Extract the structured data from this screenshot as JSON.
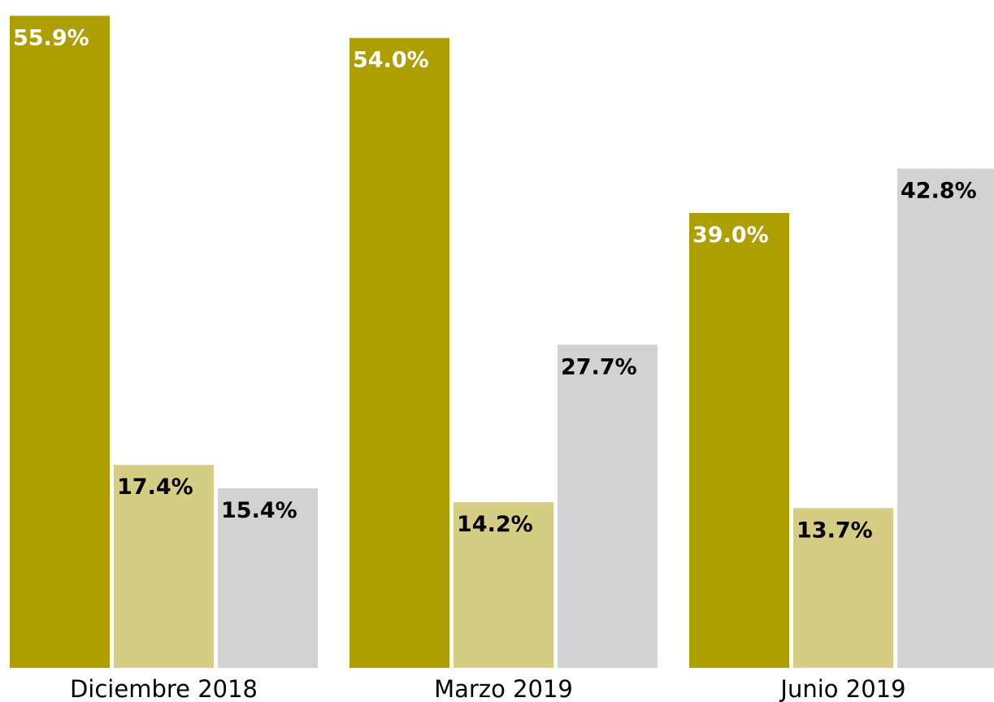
{
  "chart_data": {
    "type": "bar",
    "categories": [
      "Diciembre 2018",
      "Marzo 2019",
      "Junio 2019"
    ],
    "series": [
      {
        "color": "#ad9f00",
        "values": [
          55.9,
          54.0,
          39.0
        ],
        "value_labels": [
          "55.9%",
          "54.0%",
          "39.0%"
        ],
        "label_color": "#ffffff"
      },
      {
        "color": "#d5cd84",
        "values": [
          17.4,
          14.2,
          13.7
        ],
        "value_labels": [
          "17.4%",
          "14.2%",
          "13.7%"
        ],
        "label_color": "#000000"
      },
      {
        "color": "#d1d2d4",
        "values": [
          15.4,
          27.7,
          42.8
        ],
        "value_labels": [
          "15.4%",
          "27.7%",
          "42.8%"
        ],
        "label_color": "#000000"
      }
    ],
    "ylim": [
      0,
      56
    ]
  }
}
